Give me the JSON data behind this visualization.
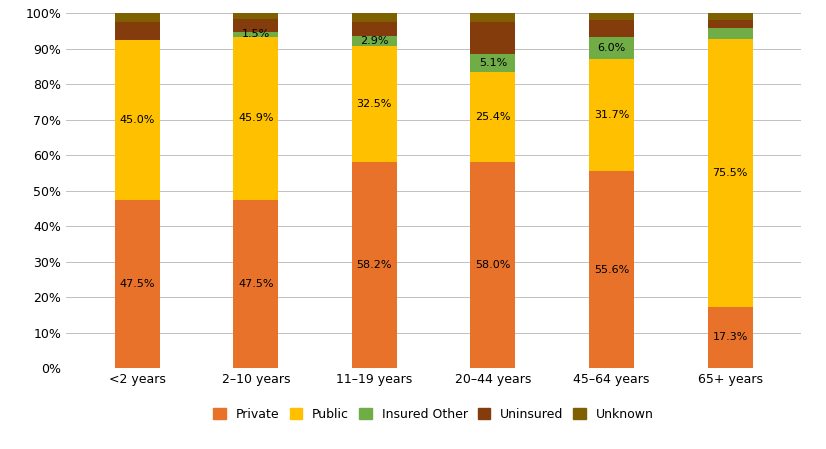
{
  "categories": [
    "<2 years",
    "2–10 years",
    "11–19 years",
    "20–44 years",
    "45–64 years",
    "65+ years"
  ],
  "series": {
    "Private": [
      47.5,
      47.5,
      58.2,
      58.0,
      55.6,
      17.3
    ],
    "Public": [
      45.0,
      45.9,
      32.5,
      25.4,
      31.7,
      75.5
    ],
    "Insured Other": [
      0.0,
      1.5,
      2.9,
      5.1,
      6.0,
      3.0
    ],
    "Uninsured": [
      5.0,
      3.6,
      4.0,
      9.0,
      5.0,
      2.5
    ],
    "Unknown": [
      2.5,
      1.5,
      2.4,
      2.5,
      1.7,
      1.7
    ]
  },
  "colors": {
    "Private": "#E8722A",
    "Public": "#FFC000",
    "Insured Other": "#70AD47",
    "Uninsured": "#843C0C",
    "Unknown": "#7F6000"
  },
  "labels": {
    "Private": [
      47.5,
      47.5,
      58.2,
      58.0,
      55.6,
      17.3
    ],
    "Public": [
      45.0,
      45.9,
      32.5,
      25.4,
      31.7,
      75.5
    ],
    "Insured Other": [
      null,
      1.5,
      2.9,
      5.1,
      6.0,
      null
    ],
    "Uninsured": [
      null,
      null,
      null,
      null,
      null,
      null
    ],
    "Unknown": [
      null,
      null,
      null,
      null,
      null,
      null
    ]
  },
  "ylim": [
    0,
    100
  ],
  "yticks": [
    0,
    10,
    20,
    30,
    40,
    50,
    60,
    70,
    80,
    90,
    100
  ],
  "ytick_labels": [
    "0%",
    "10%",
    "20%",
    "30%",
    "40%",
    "50%",
    "60%",
    "70%",
    "80%",
    "90%",
    "100%"
  ],
  "legend_order": [
    "Private",
    "Public",
    "Insured Other",
    "Uninsured",
    "Unknown"
  ],
  "background_color": "#FFFFFF",
  "bar_width": 0.38,
  "label_fontsize": 8,
  "tick_fontsize": 9
}
